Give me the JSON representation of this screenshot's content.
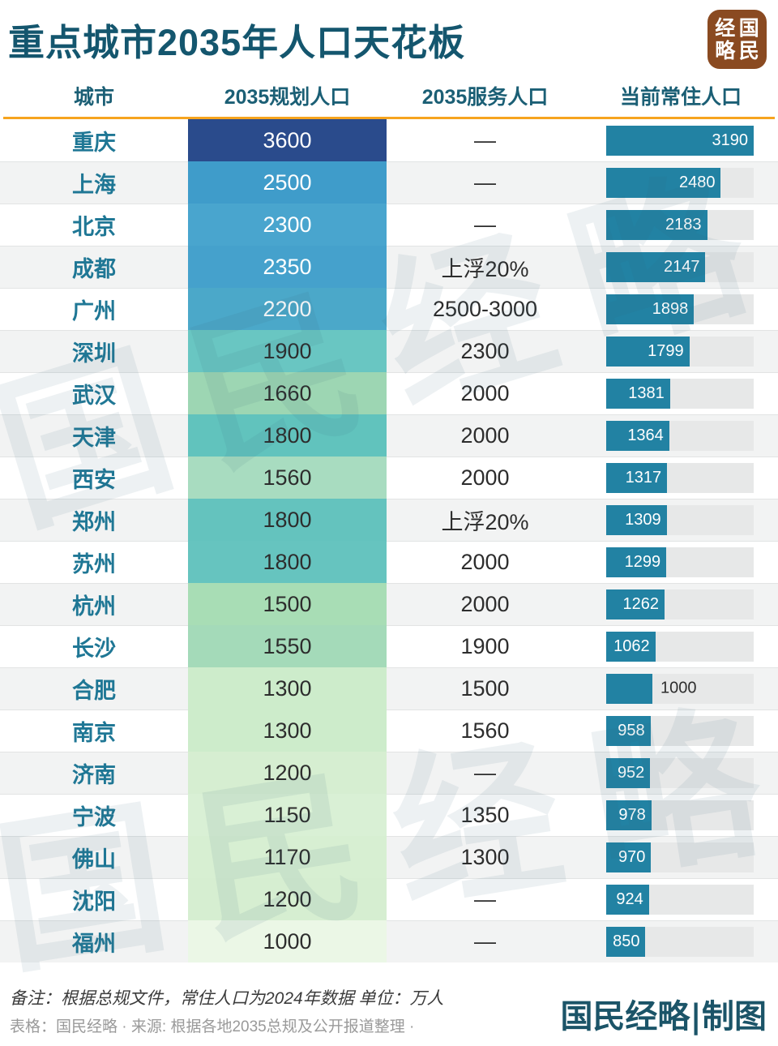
{
  "header": {
    "title": "重点城市2035年人口天花板",
    "logo": {
      "chars": [
        "经",
        "国",
        "略",
        "民"
      ],
      "bg_color": "#8a4a21"
    }
  },
  "table": {
    "columns": [
      "城市",
      "2035规划人口",
      "2035服务人口",
      "当前常住人口"
    ],
    "accent_color": "#f6a41f",
    "bar_color": "#2282a3",
    "bar_track_color": "#e7e8e8",
    "bar_max": 3190,
    "rows": [
      {
        "city": "重庆",
        "planned": "3600",
        "planned_color": "#2a4b8c",
        "planned_text_light": true,
        "service": "—",
        "current": 3190,
        "label_inside": true
      },
      {
        "city": "上海",
        "planned": "2500",
        "planned_color": "#3f9cca",
        "planned_text_light": true,
        "service": "—",
        "current": 2480,
        "label_inside": true
      },
      {
        "city": "北京",
        "planned": "2300",
        "planned_color": "#49a5ce",
        "planned_text_light": true,
        "service": "—",
        "current": 2183,
        "label_inside": true
      },
      {
        "city": "成都",
        "planned": "2350",
        "planned_color": "#45a1cc",
        "planned_text_light": true,
        "service": "上浮20%",
        "current": 2147,
        "label_inside": true
      },
      {
        "city": "广州",
        "planned": "2200",
        "planned_color": "#4ba8c9",
        "planned_text_light": true,
        "service": "2500-3000",
        "current": 1898,
        "label_inside": true
      },
      {
        "city": "深圳",
        "planned": "1900",
        "planned_color": "#69c6c2",
        "planned_text_light": false,
        "service": "2300",
        "current": 1799,
        "label_inside": true
      },
      {
        "city": "武汉",
        "planned": "1660",
        "planned_color": "#9dd6b3",
        "planned_text_light": false,
        "service": "2000",
        "current": 1381,
        "label_inside": true
      },
      {
        "city": "天津",
        "planned": "1800",
        "planned_color": "#61c3bd",
        "planned_text_light": false,
        "service": "2000",
        "current": 1364,
        "label_inside": true
      },
      {
        "city": "西安",
        "planned": "1560",
        "planned_color": "#a8dcc0",
        "planned_text_light": false,
        "service": "2000",
        "current": 1317,
        "label_inside": true
      },
      {
        "city": "郑州",
        "planned": "1800",
        "planned_color": "#64c3be",
        "planned_text_light": false,
        "service": "上浮20%",
        "current": 1309,
        "label_inside": true
      },
      {
        "city": "苏州",
        "planned": "1800",
        "planned_color": "#66c4bf",
        "planned_text_light": false,
        "service": "2000",
        "current": 1299,
        "label_inside": true
      },
      {
        "city": "杭州",
        "planned": "1500",
        "planned_color": "#a8ddb5",
        "planned_text_light": false,
        "service": "2000",
        "current": 1262,
        "label_inside": true
      },
      {
        "city": "长沙",
        "planned": "1550",
        "planned_color": "#a4dab9",
        "planned_text_light": false,
        "service": "1900",
        "current": 1062,
        "label_inside": true
      },
      {
        "city": "合肥",
        "planned": "1300",
        "planned_color": "#cdeccb",
        "planned_text_light": false,
        "service": "1500",
        "current": 1000,
        "label_inside": false
      },
      {
        "city": "南京",
        "planned": "1300",
        "planned_color": "#cdeccb",
        "planned_text_light": false,
        "service": "1560",
        "current": 958,
        "label_inside": true
      },
      {
        "city": "济南",
        "planned": "1200",
        "planned_color": "#d6eed1",
        "planned_text_light": false,
        "service": "—",
        "current": 952,
        "label_inside": true
      },
      {
        "city": "宁波",
        "planned": "1150",
        "planned_color": "#d9f0d5",
        "planned_text_light": false,
        "service": "1350",
        "current": 978,
        "label_inside": true
      },
      {
        "city": "佛山",
        "planned": "1170",
        "planned_color": "#d7efd2",
        "planned_text_light": false,
        "service": "1300",
        "current": 970,
        "label_inside": true
      },
      {
        "city": "沈阳",
        "planned": "1200",
        "planned_color": "#d6eed1",
        "planned_text_light": false,
        "service": "—",
        "current": 924,
        "label_inside": true
      },
      {
        "city": "福州",
        "planned": "1000",
        "planned_color": "#ebf7e6",
        "planned_text_light": false,
        "service": "—",
        "current": 850,
        "label_inside": true
      }
    ]
  },
  "chart_data": {
    "type": "table",
    "title": "重点城市2035年人口天花板",
    "unit": "万人",
    "columns": [
      "城市",
      "2035规划人口",
      "2035服务人口",
      "当前常住人口"
    ],
    "bar_column": "当前常住人口",
    "bar_range": [
      0,
      3190
    ],
    "rows": [
      [
        "重庆",
        3600,
        "—",
        3190
      ],
      [
        "上海",
        2500,
        "—",
        2480
      ],
      [
        "北京",
        2300,
        "—",
        2183
      ],
      [
        "成都",
        2350,
        "上浮20%",
        2147
      ],
      [
        "广州",
        2200,
        "2500-3000",
        1898
      ],
      [
        "深圳",
        1900,
        "2300",
        1799
      ],
      [
        "武汉",
        1660,
        "2000",
        1381
      ],
      [
        "天津",
        1800,
        "2000",
        1364
      ],
      [
        "西安",
        1560,
        "2000",
        1317
      ],
      [
        "郑州",
        1800,
        "上浮20%",
        1309
      ],
      [
        "苏州",
        1800,
        "2000",
        1299
      ],
      [
        "杭州",
        1500,
        "2000",
        1262
      ],
      [
        "长沙",
        1550,
        "1900",
        1062
      ],
      [
        "合肥",
        1300,
        "1500",
        1000
      ],
      [
        "南京",
        1300,
        "1560",
        958
      ],
      [
        "济南",
        1200,
        "—",
        952
      ],
      [
        "宁波",
        1150,
        "1350",
        978
      ],
      [
        "佛山",
        1170,
        "1300",
        970
      ],
      [
        "沈阳",
        1200,
        "—",
        924
      ],
      [
        "福州",
        1000,
        "—",
        850
      ]
    ]
  },
  "footer": {
    "note1": "备注：根据总规文件，常住人口为2024年数据 单位：万人",
    "note2": "表格：国民经略 · 来源: 根据各地2035总规及公开报道整理 ·",
    "credit": "国民经略|制图"
  },
  "watermark": {
    "text": "国民经略"
  }
}
